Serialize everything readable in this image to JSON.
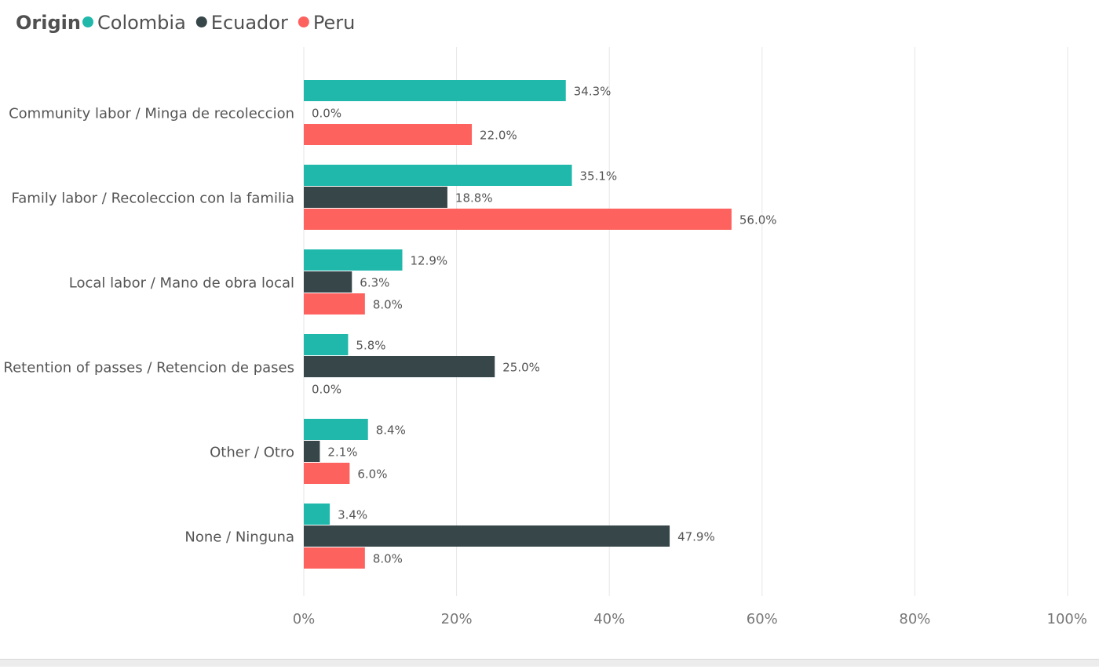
{
  "legend": {
    "title": "Origin",
    "items": [
      {
        "label": "Colombia",
        "color": "#1fb8aa"
      },
      {
        "label": "Ecuador",
        "color": "#374649"
      },
      {
        "label": "Peru",
        "color": "#fd625e"
      }
    ]
  },
  "chart_data": {
    "type": "bar",
    "orientation": "horizontal",
    "categories": [
      "Community labor / Minga de recoleccion",
      "Family labor / Recoleccion con la familia",
      "Local labor / Mano de obra local",
      "Retention of passes / Retencion de pases",
      "Other / Otro",
      "None / Ninguna"
    ],
    "series": [
      {
        "name": "Colombia",
        "color": "#1fb8aa",
        "values": [
          34.3,
          35.1,
          12.9,
          5.8,
          8.4,
          3.4
        ]
      },
      {
        "name": "Ecuador",
        "color": "#374649",
        "values": [
          0.0,
          18.8,
          6.3,
          25.0,
          2.1,
          47.9
        ]
      },
      {
        "name": "Peru",
        "color": "#fd625e",
        "values": [
          22.0,
          56.0,
          8.0,
          0.0,
          6.0,
          8.0
        ]
      }
    ],
    "data_labels": [
      [
        "34.3%",
        "0.0%",
        "22.0%"
      ],
      [
        "35.1%",
        "18.8%",
        "56.0%"
      ],
      [
        "12.9%",
        "6.3%",
        "8.0%"
      ],
      [
        "5.8%",
        "25.0%",
        "0.0%"
      ],
      [
        "8.4%",
        "2.1%",
        "6.0%"
      ],
      [
        "3.4%",
        "47.9%",
        "8.0%"
      ]
    ],
    "x_ticks": [
      "0%",
      "20%",
      "40%",
      "60%",
      "80%",
      "100%"
    ],
    "x_tick_values": [
      0,
      20,
      40,
      60,
      80,
      100
    ],
    "xlim": [
      0,
      100
    ],
    "grid": true,
    "legend_position": "top-left"
  }
}
